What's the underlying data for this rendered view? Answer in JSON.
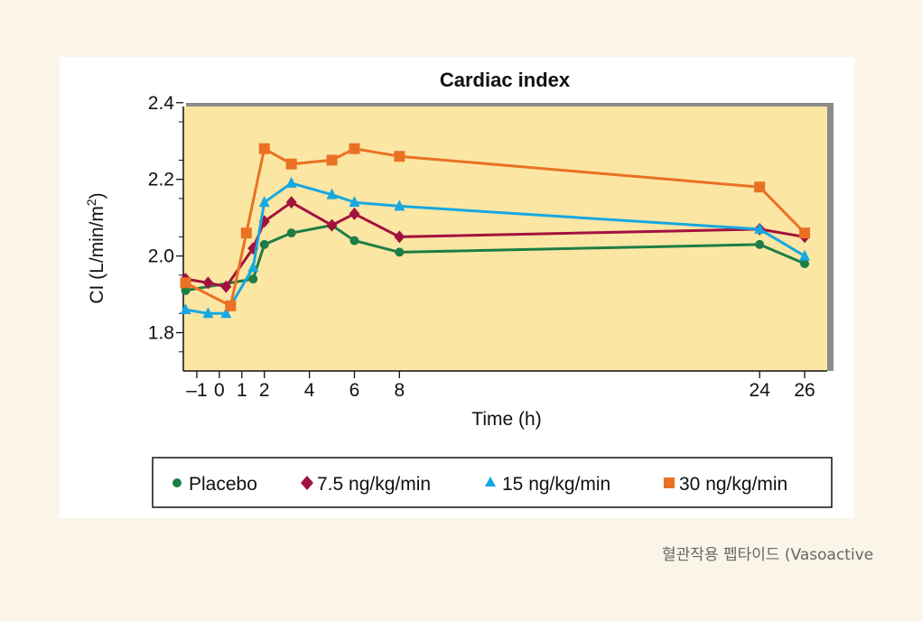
{
  "colors": {
    "page_background": "#faf5e8",
    "figure_background": "#ffffff",
    "plot_background": "#fbe6a4",
    "frame_shadow": "#8c8c8c",
    "caption_text": "#666666"
  },
  "caption": "혈관작용 펩타이드 (Vasoactive",
  "chart_data": {
    "type": "line",
    "title": "Cardiac index",
    "xlabel": "Time (h)",
    "ylabel_prefix": "CI (L/min/m",
    "ylabel_sup": "2",
    "ylabel_suffix": ")",
    "xlim": [
      -1.6,
      27.0
    ],
    "ylim": [
      1.7,
      2.39
    ],
    "x_ticks": [
      -1,
      0,
      1,
      2,
      4,
      6,
      8,
      24,
      26
    ],
    "x_tick_labels": [
      "–1",
      "0",
      "1",
      "2",
      "4",
      "6",
      "8",
      "24",
      "26"
    ],
    "y_ticks": [
      1.8,
      2.0,
      2.2,
      2.4
    ],
    "y_tick_labels": [
      "1.8",
      "2.0",
      "2.2",
      "2.4"
    ],
    "legend_position": "bottom",
    "grid": false,
    "series": [
      {
        "name": "Placebo",
        "color": "#1e7d46",
        "marker": "circle",
        "points": [
          [
            -1.5,
            1.91
          ],
          [
            1.5,
            1.94
          ],
          [
            2.0,
            2.03
          ],
          [
            3.2,
            2.06
          ],
          [
            5.0,
            2.08
          ],
          [
            6.0,
            2.04
          ],
          [
            8.0,
            2.01
          ],
          [
            24.0,
            2.03
          ],
          [
            26.0,
            1.98
          ]
        ]
      },
      {
        "name": "7.5 ng/kg/min",
        "color": "#a3123f",
        "marker": "diamond",
        "points": [
          [
            -1.5,
            1.94
          ],
          [
            -0.5,
            1.93
          ],
          [
            0.3,
            1.92
          ],
          [
            1.5,
            2.02
          ],
          [
            2.0,
            2.09
          ],
          [
            3.2,
            2.14
          ],
          [
            5.0,
            2.08
          ],
          [
            6.0,
            2.11
          ],
          [
            8.0,
            2.05
          ],
          [
            24.0,
            2.07
          ],
          [
            26.0,
            2.05
          ]
        ]
      },
      {
        "name": "15 ng/kg/min",
        "color": "#16a8e0",
        "marker": "triangle",
        "points": [
          [
            -1.5,
            1.86
          ],
          [
            -0.5,
            1.85
          ],
          [
            0.3,
            1.85
          ],
          [
            1.5,
            1.97
          ],
          [
            2.0,
            2.14
          ],
          [
            3.2,
            2.19
          ],
          [
            5.0,
            2.16
          ],
          [
            6.0,
            2.14
          ],
          [
            8.0,
            2.13
          ],
          [
            24.0,
            2.07
          ],
          [
            26.0,
            2.0
          ]
        ]
      },
      {
        "name": "30 ng/kg/min",
        "color": "#ea7124",
        "marker": "square",
        "points": [
          [
            -1.5,
            1.93
          ],
          [
            0.5,
            1.87
          ],
          [
            1.2,
            2.06
          ],
          [
            2.0,
            2.28
          ],
          [
            3.2,
            2.24
          ],
          [
            5.0,
            2.25
          ],
          [
            6.0,
            2.28
          ],
          [
            8.0,
            2.26
          ],
          [
            24.0,
            2.18
          ],
          [
            26.0,
            2.06
          ]
        ]
      }
    ]
  }
}
